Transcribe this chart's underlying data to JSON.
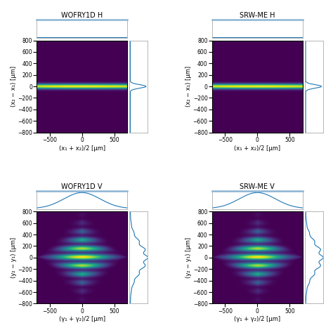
{
  "titles": [
    "WOFRY1D H",
    "SRW-ME H",
    "WOFRY1D V",
    "SRW-ME V"
  ],
  "xlim": [
    -700,
    700
  ],
  "ylim": [
    -800,
    800
  ],
  "xlabel_h": "(x₁ + x₂)/2 [μm]",
  "xlabel_v": "(γ₁ + γ₂)/2 [μm]",
  "ylabel_h": "(x₂ − x₁) [μm]",
  "ylabel_v": "(y₂ − y₁) [μm]",
  "cmap": "viridis",
  "profile_color": "#1f77b4",
  "xticks": [
    -500,
    0,
    500
  ],
  "yticks": [
    -800,
    -600,
    -400,
    -200,
    0,
    200,
    400,
    600,
    800
  ],
  "H_sigma_y": 30,
  "V_sigma_x": 300,
  "V_sigma_y_center": 250,
  "V_fringe_period": 150,
  "H_top_flat": true,
  "V_top_sigma": 280
}
